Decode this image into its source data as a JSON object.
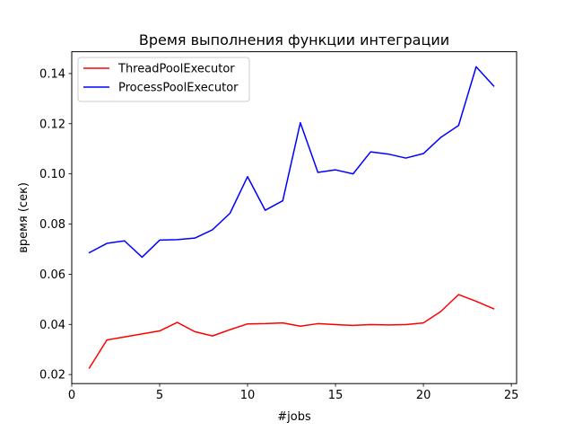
{
  "chart_data": {
    "type": "line",
    "title": "Время выполнения функции интеграции",
    "xlabel": "#jobs",
    "ylabel": "время (сек)",
    "xlim": [
      0,
      25.3
    ],
    "ylim": [
      0.0164,
      0.1487
    ],
    "xticks": [
      0,
      5,
      10,
      15,
      20,
      25
    ],
    "yticks": [
      0.02,
      0.04,
      0.06,
      0.08,
      0.1,
      0.12,
      0.14
    ],
    "ytick_labels": [
      "0.02",
      "0.04",
      "0.06",
      "0.08",
      "0.10",
      "0.12",
      "0.14"
    ],
    "grid": false,
    "legend_position": "top-left",
    "x": [
      1,
      2,
      3,
      4,
      5,
      6,
      7,
      8,
      9,
      10,
      11,
      12,
      13,
      14,
      15,
      16,
      17,
      18,
      19,
      20,
      21,
      22,
      23,
      24
    ],
    "series": [
      {
        "name": "ThreadPoolExecutor",
        "color": "#ff0000",
        "values": [
          0.0226,
          0.0338,
          0.035,
          0.0362,
          0.0374,
          0.0408,
          0.0371,
          0.0354,
          0.0379,
          0.0402,
          0.0403,
          0.0406,
          0.0393,
          0.0403,
          0.0399,
          0.0396,
          0.0399,
          0.0398,
          0.0399,
          0.0406,
          0.0452,
          0.0519,
          0.0492,
          0.0462
        ]
      },
      {
        "name": "ProcessPoolExecutor",
        "color": "#0000ff",
        "values": [
          0.0686,
          0.0723,
          0.0733,
          0.0668,
          0.0736,
          0.0738,
          0.0744,
          0.0777,
          0.0843,
          0.0989,
          0.0855,
          0.0893,
          0.1204,
          0.1006,
          0.1016,
          0.1,
          0.1088,
          0.1079,
          0.1063,
          0.1081,
          0.1146,
          0.1193,
          0.1427,
          0.135
        ]
      }
    ]
  }
}
